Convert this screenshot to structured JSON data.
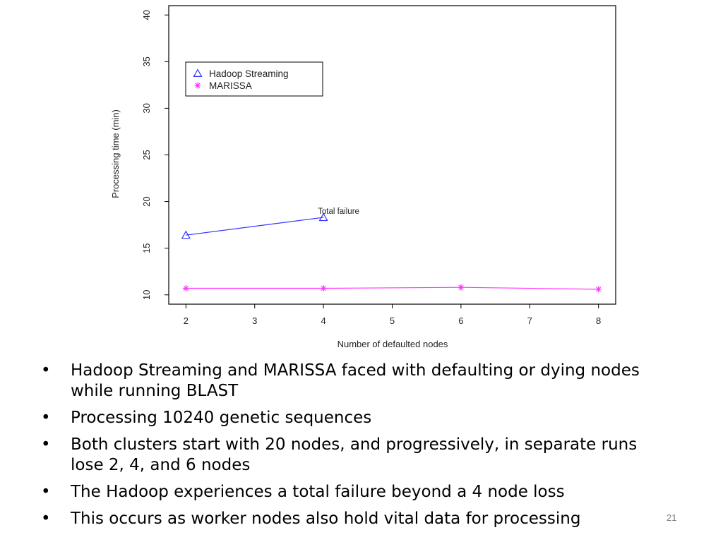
{
  "chart_data": {
    "type": "line",
    "xlabel": "Number of defaulted nodes",
    "ylabel": "Processing time (min)",
    "xlim": [
      1.75,
      8.25
    ],
    "ylim": [
      9.0,
      41.0
    ],
    "x_ticks": [
      "2",
      "3",
      "4",
      "5",
      "6",
      "7",
      "8"
    ],
    "y_ticks": [
      "10",
      "15",
      "20",
      "25",
      "30",
      "35",
      "40"
    ],
    "legend_position": "top-left",
    "grid": false,
    "series": [
      {
        "name": "Hadoop Streaming",
        "marker": "triangle",
        "color": "#3333ff",
        "x": [
          2,
          4
        ],
        "y": [
          16.4,
          18.3
        ]
      },
      {
        "name": "MARISSA",
        "marker": "asterisk",
        "color": "#ff33ff",
        "x": [
          2,
          4,
          6,
          8
        ],
        "y": [
          10.7,
          10.7,
          10.8,
          10.6
        ]
      }
    ],
    "annotations": [
      {
        "text": "Total failure",
        "x": 4,
        "y": 18.3
      }
    ]
  },
  "bullets": [
    {
      "marker": "•",
      "text": "Hadoop Streaming and MARISSA faced with defaulting or dying nodes while running BLAST"
    },
    {
      "marker": "•",
      "text": "Processing 10240 genetic sequences"
    },
    {
      "marker": "•",
      "text": "Both clusters start with 20 nodes, and progressively, in separate runs lose 2, 4, and 6 nodes"
    },
    {
      "marker": "•",
      "text": "The Hadoop experiences a total failure beyond a 4 node loss"
    },
    {
      "marker": "•",
      "text": "This occurs as worker nodes also hold vital data for processing"
    }
  ],
  "slide_number": "21"
}
